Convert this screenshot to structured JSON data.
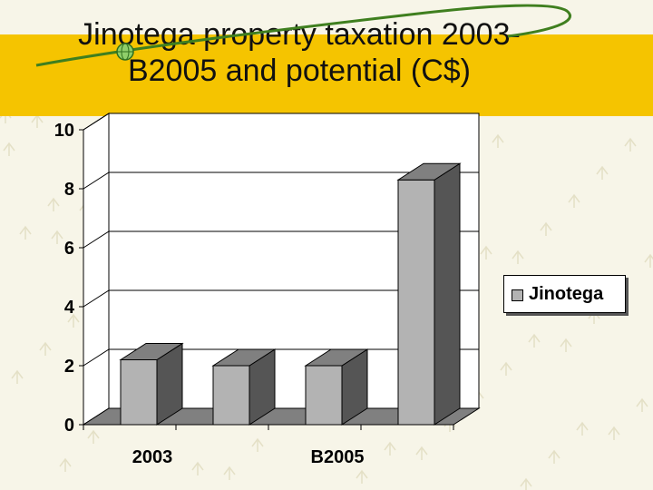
{
  "title": "Jinotega property taxation 2003-\nB2005 and potential (C$)",
  "colors": {
    "band": "#f5c400",
    "bar_front": "#b3b3b3",
    "bar_side": "#555555",
    "bar_top": "#808080"
  },
  "chart_data": {
    "type": "bar",
    "title": "Jinotega property taxation 2003-B2005 and potential (C$)",
    "categories": [
      "2003",
      "",
      "B2005",
      ""
    ],
    "series": [
      {
        "name": "Jinotega",
        "values": [
          2.2,
          2.0,
          2.0,
          8.3
        ]
      }
    ],
    "yticks": [
      0,
      2,
      4,
      6,
      8,
      10
    ],
    "ylim": [
      0,
      10
    ],
    "grid": true,
    "legend": "right",
    "three_d": true
  }
}
